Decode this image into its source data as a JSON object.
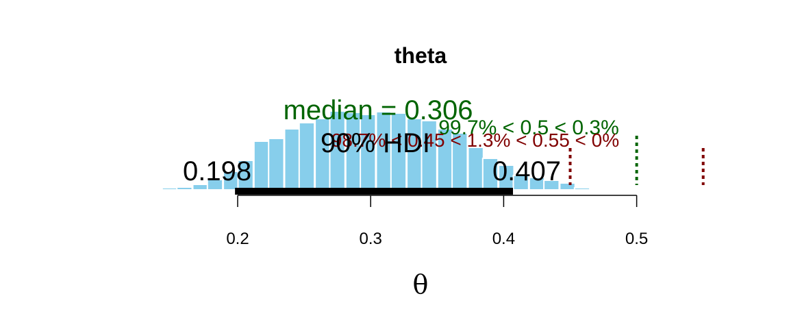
{
  "chart_data": {
    "type": "bar",
    "title": "theta",
    "xlabel": "θ",
    "xlim": [
      0.12,
      0.56
    ],
    "ylim": [
      0,
      0.12
    ],
    "x_ticks": [
      0.2,
      0.3,
      0.4,
      0.5
    ],
    "x_tick_labels": [
      "0.2",
      "0.3",
      "0.4",
      "0.5"
    ],
    "bar_width": 0.0115,
    "bars": {
      "x": [
        0.126,
        0.137,
        0.149,
        0.16,
        0.172,
        0.183,
        0.195,
        0.206,
        0.218,
        0.229,
        0.241,
        0.252,
        0.264,
        0.275,
        0.287,
        0.298,
        0.31,
        0.321,
        0.333,
        0.344,
        0.356,
        0.367,
        0.379,
        0.39,
        0.402,
        0.413,
        0.425,
        0.436,
        0.448,
        0.459,
        0.471,
        0.482
      ],
      "values": [
        0.0005,
        0.001,
        0.003,
        0.004,
        0.008,
        0.015,
        0.027,
        0.043,
        0.071,
        0.075,
        0.089,
        0.098,
        0.104,
        0.115,
        0.113,
        0.11,
        0.114,
        0.112,
        0.104,
        0.101,
        0.089,
        0.083,
        0.062,
        0.046,
        0.036,
        0.021,
        0.018,
        0.014,
        0.01,
        0.003,
        0.002,
        0.001
      ]
    },
    "median": {
      "label": "median = 0.306"
    },
    "hdi": {
      "label": "90% HDI",
      "low": 0.198,
      "high": 0.407,
      "low_label": "0.198",
      "high_label": "0.407"
    },
    "comparison": {
      "value": 0.5,
      "label": "99.7% < 0.5 < 0.3%",
      "color": "#006400"
    },
    "rope": {
      "low": 0.45,
      "high": 0.55,
      "label": "98.7% < 0.45 < 1.3% < 0.55 < 0%",
      "color": "#800000"
    },
    "bar_color": "#87CEEB"
  }
}
